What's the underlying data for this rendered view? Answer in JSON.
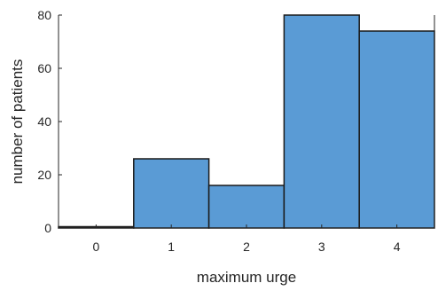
{
  "chart_data": {
    "type": "bar",
    "categories": [
      "0",
      "1",
      "2",
      "3",
      "4"
    ],
    "values": [
      0.5,
      26,
      16,
      80,
      74
    ],
    "xlabel": "maximum urge",
    "ylabel": "number of patients",
    "ylim": [
      0,
      80
    ],
    "xlim": [
      -0.5,
      4.5
    ],
    "yticks": [
      "0",
      "20",
      "40",
      "60",
      "80"
    ],
    "bar_color": "#5a9bd5",
    "edge_color": "#1a1a1a",
    "grid": false
  }
}
